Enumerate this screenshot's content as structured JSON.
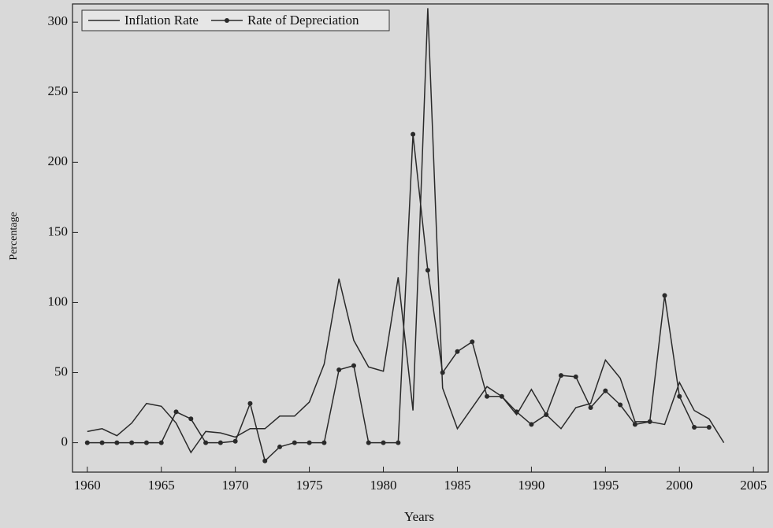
{
  "chart_data": {
    "type": "line",
    "x_label": "Years",
    "y_label": "Percentage",
    "x": [
      1960,
      1961,
      1962,
      1963,
      1964,
      1965,
      1966,
      1967,
      1968,
      1969,
      1970,
      1971,
      1972,
      1973,
      1974,
      1975,
      1976,
      1977,
      1978,
      1979,
      1980,
      1981,
      1982,
      1983,
      1984,
      1985,
      1986,
      1987,
      1988,
      1989,
      1990,
      1991,
      1992,
      1993,
      1994,
      1995,
      1996,
      1997,
      1998,
      1999,
      2000,
      2001,
      2002,
      2003
    ],
    "series": [
      {
        "name": "Inflation Rate",
        "color": "#2a2a2a",
        "marker": false,
        "values": [
          8,
          10,
          5,
          14,
          28,
          26,
          14,
          -7,
          8,
          7,
          4,
          10,
          10,
          19,
          19,
          29,
          56,
          117,
          73,
          54,
          51,
          118,
          23,
          310,
          39,
          10,
          25,
          40,
          33,
          20,
          38,
          20,
          10,
          25,
          28,
          59,
          46,
          15,
          15,
          13,
          43,
          23,
          17,
          0
        ]
      },
      {
        "name": "Rate of Depreciation",
        "color": "#2a2a2a",
        "marker": true,
        "values": [
          0,
          0,
          0,
          0,
          0,
          0,
          22,
          17,
          0,
          0,
          1,
          28,
          -13,
          -3,
          0,
          0,
          0,
          52,
          55,
          0,
          0,
          0,
          220,
          123,
          50,
          65,
          72,
          33,
          33,
          22,
          13,
          20,
          48,
          47,
          25,
          37,
          27,
          13,
          15,
          105,
          33,
          11,
          11,
          null
        ]
      }
    ],
    "xlim": [
      1959,
      2006
    ],
    "xticks": [
      1960,
      1965,
      1970,
      1975,
      1980,
      1985,
      1990,
      1995,
      2000,
      2005
    ],
    "ylim": [
      -21,
      313
    ],
    "yticks": [
      0,
      50,
      100,
      150,
      200,
      250,
      300
    ],
    "legend": "upper left"
  }
}
